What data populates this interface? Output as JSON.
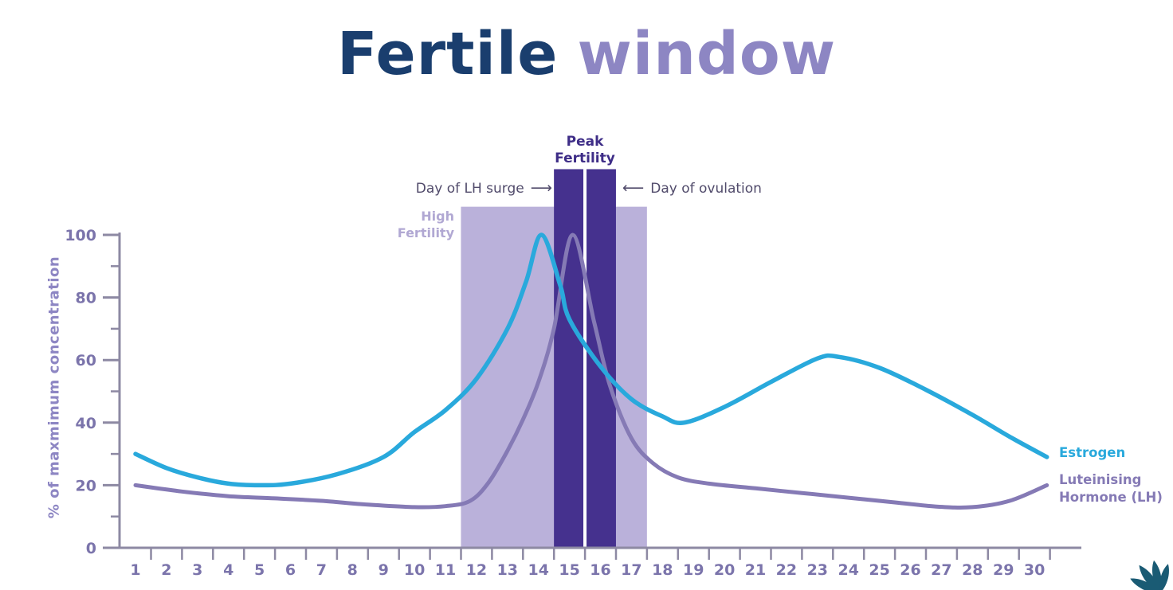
{
  "title": {
    "part1": "Fertile",
    "part2": "window"
  },
  "y_axis_label": "% of maxmimum concentration",
  "annotations": {
    "peak_fertility": "Peak Fertility",
    "high_fertility": "High Fertility",
    "lh_surge": "Day of LH surge",
    "ovulation": "Day of ovulation",
    "arrow_right": "⟶",
    "arrow_left": "⟵"
  },
  "legend": {
    "estrogen": "Estrogen",
    "lh": "Luteinising Hormone (LH)"
  },
  "colors": {
    "title_primary": "#1a3e6e",
    "title_secondary": "#8d86c3",
    "estrogen": "#29a9dc",
    "lh": "#857ab5",
    "peak_band": "#45318e",
    "high_band": "#bab1da",
    "peak_label": "#3e2d87",
    "high_label": "#b1a8d3",
    "annotation_text": "#514b6b",
    "axis": "#8d89a3",
    "tick_label": "#7b74ab",
    "logo_teal": "#1a5b74",
    "logo_light_blue": "#7cc3e0"
  },
  "chart_data": {
    "type": "line",
    "title": "Fertile window",
    "xlabel": "",
    "ylabel": "% of maxmimum concentration",
    "ylim": [
      0,
      100
    ],
    "x_ticks": [
      1,
      2,
      3,
      4,
      5,
      6,
      7,
      8,
      9,
      10,
      11,
      12,
      13,
      14,
      15,
      16,
      17,
      18,
      19,
      20,
      21,
      22,
      23,
      24,
      25,
      26,
      27,
      28,
      29,
      30
    ],
    "y_major_ticks": [
      0,
      20,
      40,
      60,
      80,
      100
    ],
    "y_minor_ticks": [
      10,
      30,
      50,
      70,
      90
    ],
    "grid": false,
    "legend_position": "right",
    "series": [
      {
        "name": "Estrogen",
        "color": "#29a9dc",
        "points": [
          [
            1,
            30
          ],
          [
            2,
            25.5
          ],
          [
            3,
            22.5
          ],
          [
            4,
            20.5
          ],
          [
            5,
            20
          ],
          [
            6,
            20.5
          ],
          [
            7.5,
            23.5
          ],
          [
            9,
            29
          ],
          [
            10,
            37
          ],
          [
            11,
            44
          ],
          [
            12,
            54
          ],
          [
            13,
            70
          ],
          [
            13.6,
            85
          ],
          [
            14.1,
            100
          ],
          [
            14.7,
            84
          ],
          [
            15,
            73
          ],
          [
            16,
            58
          ],
          [
            17,
            47.5
          ],
          [
            18,
            42
          ],
          [
            18.7,
            40
          ],
          [
            20,
            45
          ],
          [
            21.5,
            53
          ],
          [
            23,
            60.5
          ],
          [
            23.7,
            61
          ],
          [
            25,
            57.5
          ],
          [
            26.5,
            50.5
          ],
          [
            28,
            42.5
          ],
          [
            29.2,
            35.5
          ],
          [
            30.4,
            29
          ]
        ]
      },
      {
        "name": "Luteinising Hormone (LH)",
        "color": "#857ab5",
        "points": [
          [
            1,
            20
          ],
          [
            2.5,
            18
          ],
          [
            4,
            16.5
          ],
          [
            5.5,
            15.8
          ],
          [
            7,
            15
          ],
          [
            8.5,
            13.8
          ],
          [
            10,
            13
          ],
          [
            11,
            13.3
          ],
          [
            11.8,
            15
          ],
          [
            12.4,
            21
          ],
          [
            13,
            31
          ],
          [
            13.5,
            41
          ],
          [
            14,
            53
          ],
          [
            14.5,
            70
          ],
          [
            15.1,
            100
          ],
          [
            15.8,
            72
          ],
          [
            16.3,
            52
          ],
          [
            17,
            35
          ],
          [
            17.7,
            27
          ],
          [
            18.5,
            22.5
          ],
          [
            19.5,
            20.5
          ],
          [
            21,
            19
          ],
          [
            22.5,
            17.5
          ],
          [
            24,
            16
          ],
          [
            25.5,
            14.5
          ],
          [
            26.8,
            13.2
          ],
          [
            28,
            13
          ],
          [
            29.2,
            15
          ],
          [
            30.4,
            20
          ]
        ]
      }
    ],
    "bands": [
      {
        "name": "High Fertility",
        "from_day": 11.5,
        "to_day": 17.5,
        "top_pct": 109,
        "color": "#bab1da"
      },
      {
        "name": "Peak Fertility",
        "from_day": 14.5,
        "to_day": 16.5,
        "top_pct": 121,
        "color": "#45318e",
        "divider_day": 15.5,
        "events": [
          {
            "day": 15,
            "label": "Day of LH surge"
          },
          {
            "day": 16,
            "label": "Day of ovulation"
          }
        ]
      }
    ]
  }
}
